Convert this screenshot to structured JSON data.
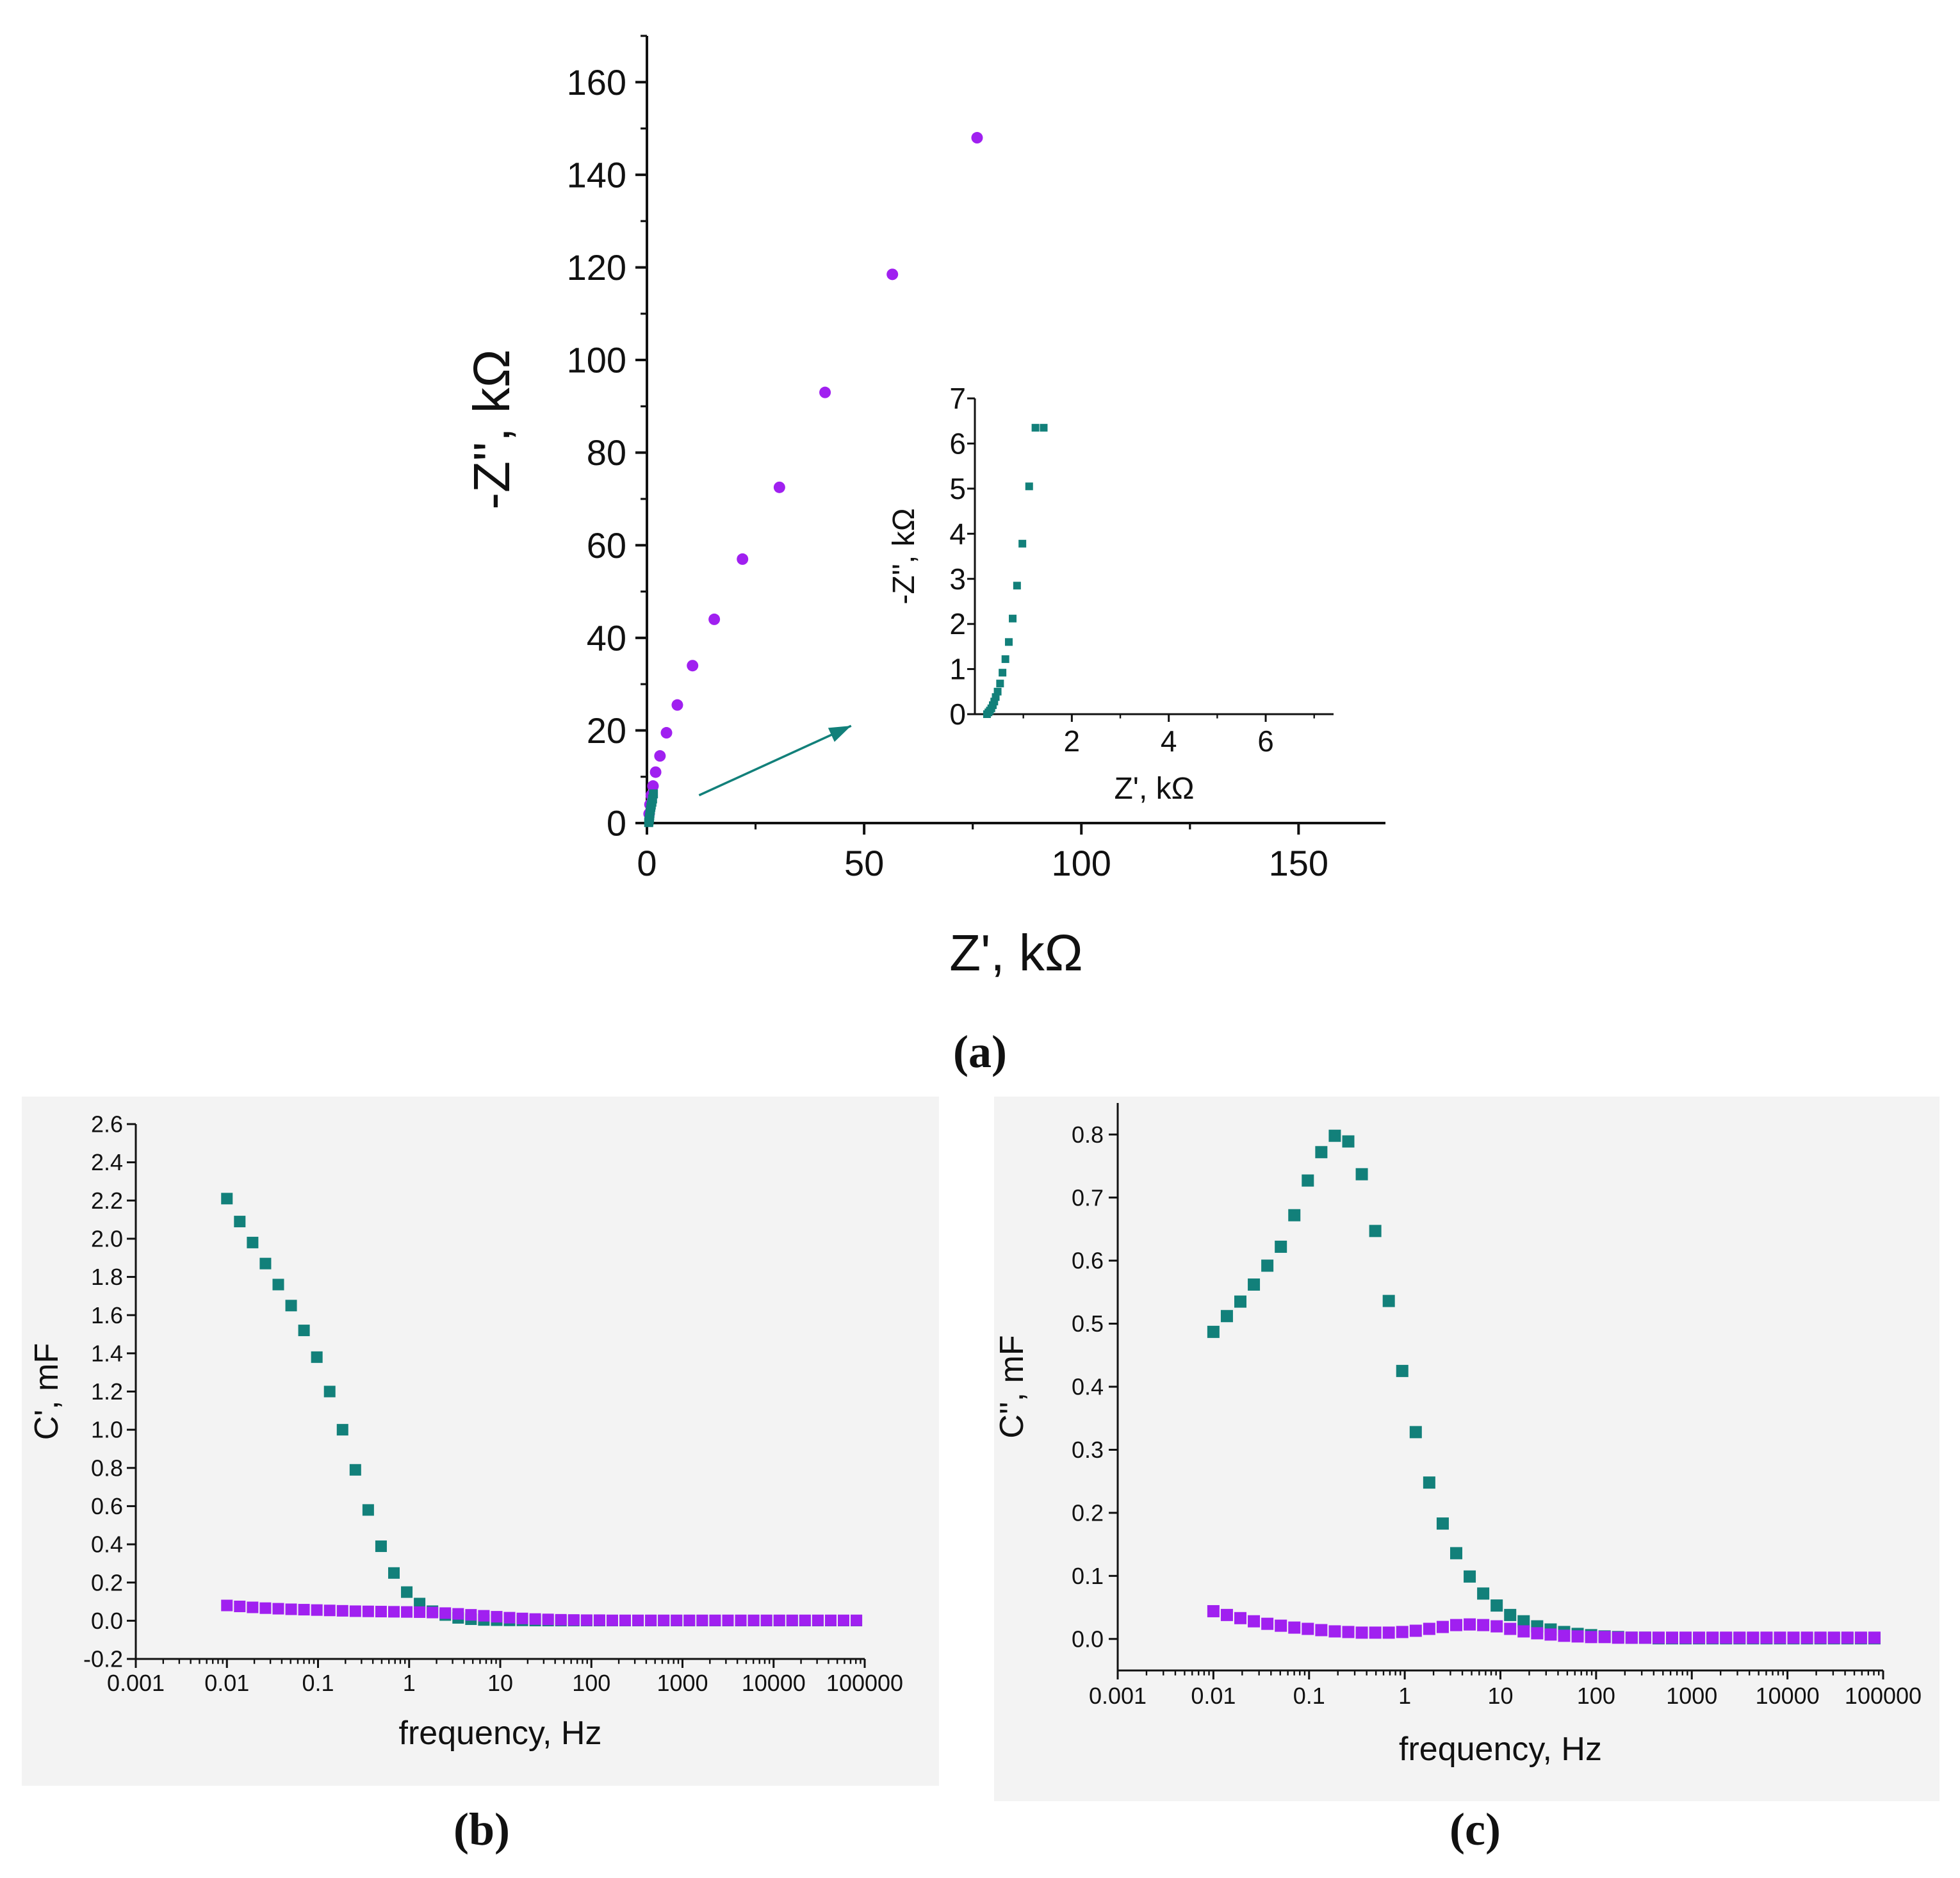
{
  "colors": {
    "series_teal": "#12807a",
    "series_purple": "#a020f0",
    "axis": "#111111",
    "panel_bg_bc": "#f3f3f3"
  },
  "chart_data": [
    {
      "id": "a",
      "type": "scatter",
      "panel_label": "(a)",
      "xlabel": "Z', kΩ",
      "ylabel": "-Z'', kΩ",
      "xlim": [
        0,
        170
      ],
      "ylim": [
        0,
        170
      ],
      "xticks": [
        0,
        50,
        100,
        150
      ],
      "xtick_labels": [
        "0",
        "50",
        "100",
        "150"
      ],
      "yticks": [
        0,
        20,
        40,
        60,
        80,
        100,
        120,
        140,
        160
      ],
      "ytick_labels": [
        "0",
        "20",
        "40",
        "60",
        "80",
        "100",
        "120",
        "140",
        "160"
      ],
      "series": [
        {
          "name": "purple",
          "marker": "circle",
          "x": [
            0.5,
            0.7,
            1.0,
            1.4,
            2.0,
            3.0,
            4.5,
            7.0,
            10.5,
            15.5,
            22.0,
            30.5,
            41.0,
            56.5,
            76.0
          ],
          "y": [
            2,
            4,
            6,
            8,
            11,
            14.5,
            19.5,
            25.5,
            34,
            44,
            57,
            72.5,
            93,
            118.5,
            148
          ]
        },
        {
          "name": "teal",
          "marker": "square",
          "x": [
            0.4,
            0.45,
            0.5,
            0.55,
            0.6,
            0.65,
            0.7,
            0.8,
            0.9,
            1.0,
            1.15,
            1.3,
            1.5
          ],
          "y": [
            0.1,
            0.3,
            0.6,
            0.9,
            1.2,
            1.6,
            2.1,
            2.8,
            3.4,
            3.9,
            4.5,
            5.2,
            6.3
          ]
        }
      ],
      "arrow": {
        "from": [
          12,
          6
        ],
        "to": [
          47,
          21
        ]
      },
      "inset": {
        "type": "scatter",
        "xlabel": "Z', kΩ",
        "ylabel": "-Z'', kΩ",
        "xlim": [
          0,
          7.4
        ],
        "ylim": [
          0,
          7
        ],
        "xticks": [
          2,
          4,
          6
        ],
        "xtick_labels": [
          "2",
          "4",
          "6"
        ],
        "yticks": [
          0,
          1,
          2,
          3,
          4,
          5,
          6,
          7
        ],
        "ytick_labels": [
          "0",
          "1",
          "2",
          "3",
          "4",
          "5",
          "6",
          "7"
        ],
        "series": [
          {
            "name": "teal",
            "marker": "square",
            "x": [
              0.25,
              0.28,
              0.31,
              0.34,
              0.37,
              0.4,
              0.43,
              0.47,
              0.52,
              0.57,
              0.63,
              0.7,
              0.78,
              0.87,
              0.98,
              1.12,
              1.25,
              1.42
            ],
            "y": [
              0.0,
              0.04,
              0.08,
              0.13,
              0.2,
              0.28,
              0.38,
              0.5,
              0.68,
              0.92,
              1.22,
              1.6,
              2.12,
              2.85,
              3.78,
              5.05,
              6.35,
              6.35
            ]
          }
        ]
      }
    },
    {
      "id": "b",
      "type": "scatter",
      "panel_label": "(b)",
      "xlabel": "frequency, Hz",
      "ylabel": "C', mF",
      "xscale": "log",
      "xlim": [
        0.001,
        100000
      ],
      "ylim": [
        -0.2,
        2.6
      ],
      "xticks": [
        0.001,
        0.01,
        0.1,
        1,
        10,
        100,
        1000,
        10000,
        100000
      ],
      "xtick_labels": [
        "0.001",
        "0.01",
        "0.1",
        "1",
        "10",
        "100",
        "1000",
        "10000",
        "100000"
      ],
      "yticks": [
        -0.2,
        0.0,
        0.2,
        0.4,
        0.6,
        0.8,
        1.0,
        1.2,
        1.4,
        1.6,
        1.8,
        2.0,
        2.2,
        2.4,
        2.6
      ],
      "ytick_labels": [
        "-0.2",
        "0.0",
        "0.2",
        "0.4",
        "0.6",
        "0.8",
        "1.0",
        "1.2",
        "1.4",
        "1.6",
        "1.8",
        "2.0",
        "2.2",
        "2.4",
        "2.6"
      ],
      "series": [
        {
          "name": "teal",
          "marker": "square",
          "x_exp_start": -2,
          "x_exp_step": 0.141,
          "x_count": 50,
          "values": [
            2.21,
            2.09,
            1.98,
            1.87,
            1.76,
            1.65,
            1.52,
            1.38,
            1.2,
            1.0,
            0.79,
            0.58,
            0.39,
            0.25,
            0.15,
            0.09,
            0.05,
            0.03,
            0.015,
            0.008,
            0.004,
            0.003,
            0.002,
            0.002,
            0.001,
            0.001,
            0.001,
            0.001,
            0.001,
            0.001,
            0.001,
            0.001,
            0.001,
            0.001,
            0.001,
            0.001,
            0.001,
            0.001,
            0.001,
            0.001,
            0.001,
            0.001,
            0.001,
            0.001,
            0.001,
            0.001,
            0.001,
            0.001,
            0.001,
            0.001
          ]
        },
        {
          "name": "purple",
          "marker": "square",
          "x_exp_start": -2,
          "x_exp_step": 0.141,
          "x_count": 50,
          "values": [
            0.08,
            0.075,
            0.07,
            0.066,
            0.063,
            0.06,
            0.058,
            0.056,
            0.054,
            0.052,
            0.05,
            0.049,
            0.048,
            0.047,
            0.046,
            0.045,
            0.043,
            0.04,
            0.036,
            0.031,
            0.026,
            0.021,
            0.016,
            0.012,
            0.009,
            0.007,
            0.005,
            0.004,
            0.003,
            0.003,
            0.002,
            0.002,
            0.002,
            0.002,
            0.002,
            0.002,
            0.002,
            0.002,
            0.002,
            0.002,
            0.002,
            0.002,
            0.002,
            0.002,
            0.002,
            0.002,
            0.002,
            0.002,
            0.002,
            0.002
          ]
        }
      ]
    },
    {
      "id": "c",
      "type": "scatter",
      "panel_label": "(c)",
      "xlabel": "frequency, Hz",
      "ylabel": "C'', mF",
      "xscale": "log",
      "xlim": [
        0.001,
        100000
      ],
      "ylim": [
        -0.05,
        0.85
      ],
      "xticks": [
        0.001,
        0.01,
        0.1,
        1,
        10,
        100,
        1000,
        10000,
        100000
      ],
      "xtick_labels": [
        "0.001",
        "0.01",
        "0.1",
        "1",
        "10",
        "100",
        "1000",
        "10000",
        "100000"
      ],
      "yticks": [
        0.0,
        0.1,
        0.2,
        0.3,
        0.4,
        0.5,
        0.6,
        0.7,
        0.8
      ],
      "ytick_labels": [
        "0.0",
        "0.1",
        "0.2",
        "0.3",
        "0.4",
        "0.5",
        "0.6",
        "0.7",
        "0.8"
      ],
      "series": [
        {
          "name": "teal",
          "marker": "square",
          "x_exp_start": -2,
          "x_exp_step": 0.141,
          "x_count": 50,
          "values": [
            0.487,
            0.512,
            0.535,
            0.562,
            0.592,
            0.622,
            0.672,
            0.727,
            0.772,
            0.798,
            0.789,
            0.737,
            0.647,
            0.536,
            0.425,
            0.328,
            0.248,
            0.183,
            0.136,
            0.099,
            0.072,
            0.053,
            0.038,
            0.028,
            0.02,
            0.015,
            0.011,
            0.008,
            0.006,
            0.004,
            0.003,
            0.002,
            0.002,
            0.001,
            0.001,
            0.001,
            0.001,
            0.001,
            0.001,
            0.001,
            0.001,
            0.001,
            0.001,
            0.001,
            0.001,
            0.001,
            0.001,
            0.001,
            0.001,
            0.001
          ]
        },
        {
          "name": "purple",
          "marker": "square",
          "x_exp_start": -2,
          "x_exp_step": 0.141,
          "x_count": 50,
          "values": [
            0.044,
            0.038,
            0.033,
            0.028,
            0.024,
            0.021,
            0.018,
            0.016,
            0.014,
            0.012,
            0.011,
            0.01,
            0.01,
            0.01,
            0.011,
            0.013,
            0.016,
            0.019,
            0.022,
            0.023,
            0.022,
            0.02,
            0.016,
            0.012,
            0.009,
            0.007,
            0.005,
            0.004,
            0.003,
            0.003,
            0.002,
            0.002,
            0.002,
            0.002,
            0.002,
            0.002,
            0.002,
            0.002,
            0.002,
            0.002,
            0.002,
            0.002,
            0.002,
            0.002,
            0.002,
            0.002,
            0.002,
            0.002,
            0.002,
            0.002
          ]
        }
      ]
    }
  ]
}
